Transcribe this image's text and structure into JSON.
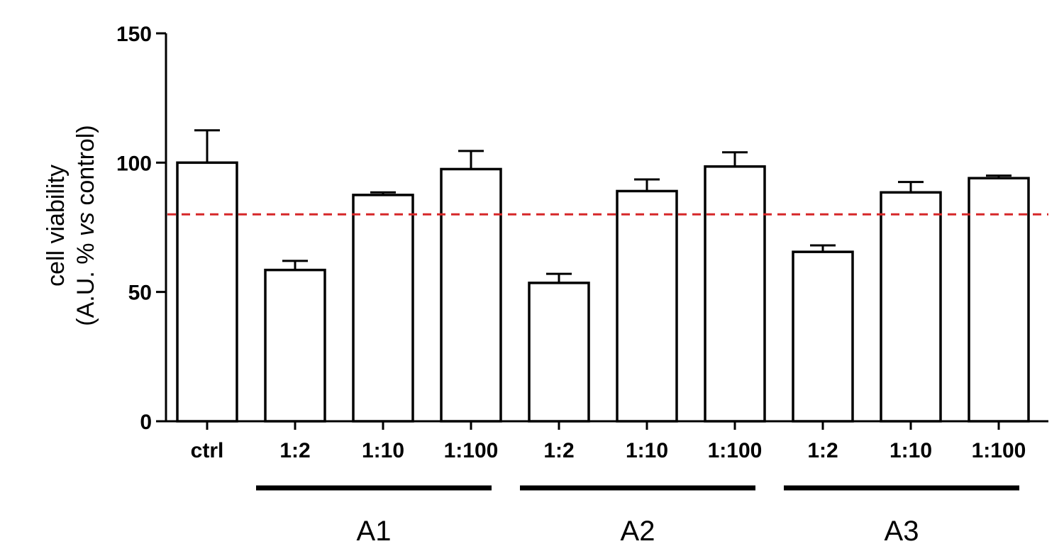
{
  "chart_data": {
    "type": "bar",
    "ylabel_line1": "cell viability",
    "ylabel_line2_prefix": "(A.U. % ",
    "ylabel_line2_italic": "vs",
    "ylabel_line2_suffix": " control)",
    "ylim": [
      0,
      150
    ],
    "yticks": [
      0,
      50,
      100,
      150
    ],
    "ytick_labels": [
      "0",
      "50",
      "100",
      "150"
    ],
    "categories": [
      "ctrl",
      "1:2",
      "1:10",
      "1:100",
      "1:2",
      "1:10",
      "1:100",
      "1:2",
      "1:10",
      "1:100"
    ],
    "values": [
      100,
      58.5,
      87.5,
      97.5,
      53.5,
      89,
      98.5,
      65.5,
      88.5,
      94
    ],
    "error_upper": [
      112.5,
      62,
      88.5,
      104.5,
      57,
      93.5,
      104,
      68,
      92.5,
      95
    ],
    "groups": [
      {
        "label": "A1",
        "from": 1,
        "to": 3
      },
      {
        "label": "A2",
        "from": 4,
        "to": 6
      },
      {
        "label": "A3",
        "from": 7,
        "to": 9
      }
    ],
    "reference_line": {
      "value": 80,
      "color": "#d62728",
      "style": "dashed"
    },
    "bar_fill": "#ffffff",
    "bar_stroke": "#000000",
    "grid": false
  }
}
